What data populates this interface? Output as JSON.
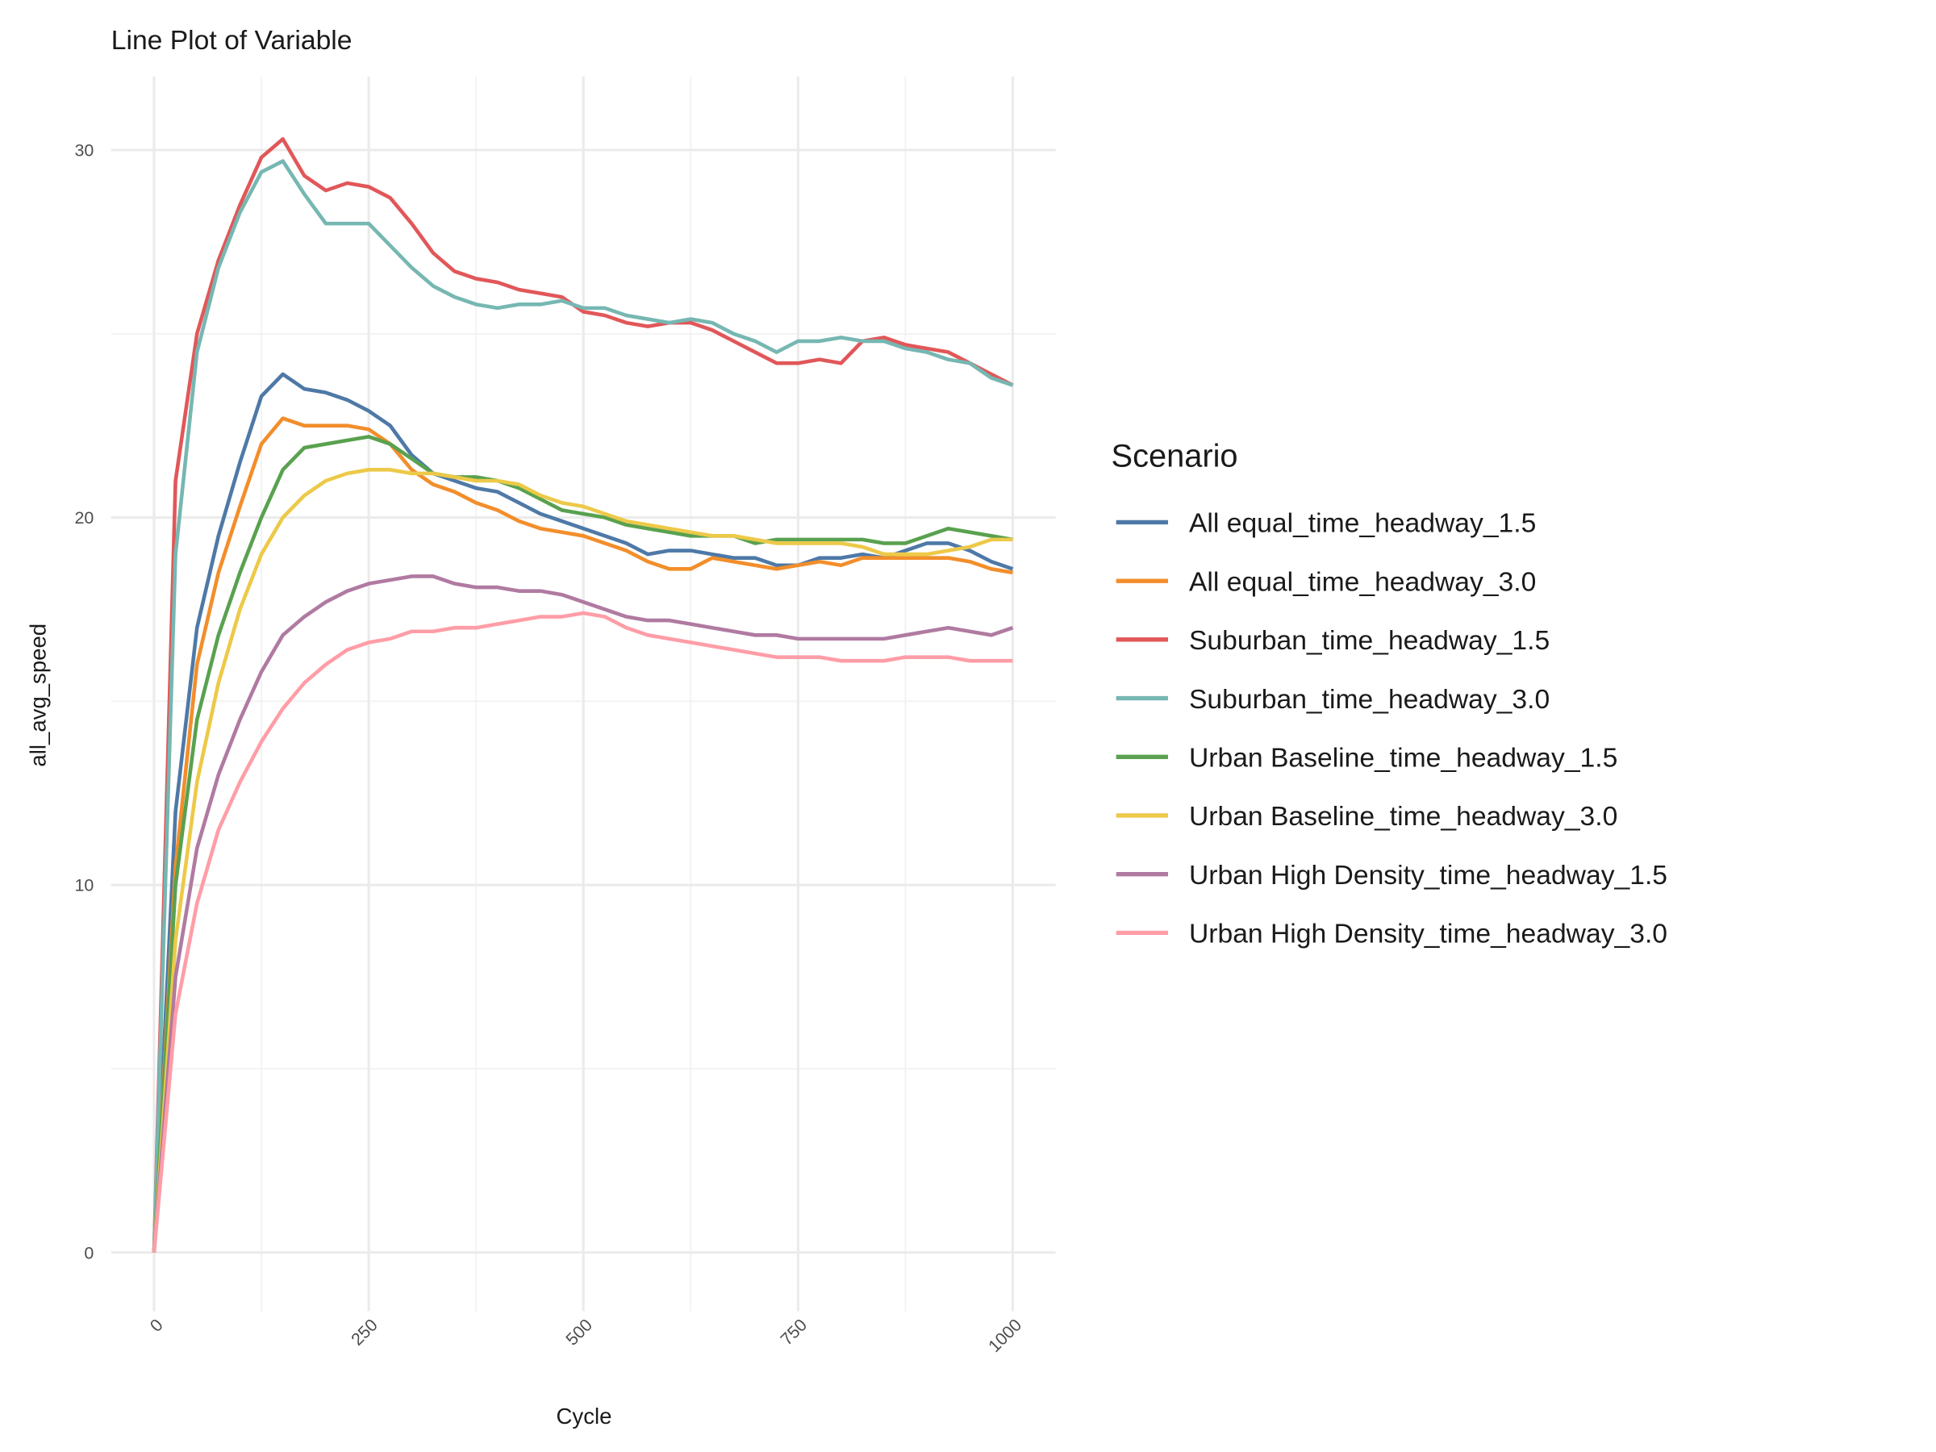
{
  "chart_data": {
    "type": "line",
    "title": "Line Plot of Variable",
    "x_label": "Cycle",
    "y_label": "all_avg_speed",
    "legend_title": "Scenario",
    "legend_position": "right",
    "grid": true,
    "xlim": [
      -50,
      1050
    ],
    "ylim": [
      -1.6,
      32
    ],
    "xticks": [
      0,
      250,
      500,
      750,
      1000
    ],
    "yticks": [
      0,
      10,
      20,
      30
    ],
    "minor_xticks": [
      125,
      375,
      625,
      875
    ],
    "minor_yticks": [
      5,
      15,
      25
    ],
    "x": [
      0,
      25,
      50,
      75,
      100,
      125,
      150,
      175,
      200,
      225,
      250,
      275,
      300,
      325,
      350,
      375,
      400,
      425,
      450,
      475,
      500,
      525,
      550,
      575,
      600,
      625,
      650,
      675,
      700,
      725,
      750,
      775,
      800,
      825,
      850,
      875,
      900,
      925,
      950,
      975,
      1000
    ],
    "series": [
      {
        "name": "All equal_time_headway_1.5",
        "color": "#4e79a7",
        "values": [
          0,
          12,
          17,
          19.5,
          21.5,
          23.3,
          23.9,
          23.5,
          23.4,
          23.2,
          22.9,
          22.5,
          21.7,
          21.2,
          21,
          20.8,
          20.7,
          20.4,
          20.1,
          19.9,
          19.7,
          19.5,
          19.3,
          19.0,
          19.1,
          19.1,
          19.0,
          18.9,
          18.9,
          18.7,
          18.7,
          18.9,
          18.9,
          19.0,
          18.9,
          19.1,
          19.3,
          19.3,
          19.1,
          18.8,
          18.6
        ]
      },
      {
        "name": "All equal_time_headway_3.0",
        "color": "#f28e2b",
        "values": [
          0,
          10.5,
          16,
          18.5,
          20.3,
          22,
          22.7,
          22.5,
          22.5,
          22.5,
          22.4,
          22,
          21.3,
          20.9,
          20.7,
          20.4,
          20.2,
          19.9,
          19.7,
          19.6,
          19.5,
          19.3,
          19.1,
          18.8,
          18.6,
          18.6,
          18.9,
          18.8,
          18.7,
          18.6,
          18.7,
          18.8,
          18.7,
          18.9,
          18.9,
          18.9,
          18.9,
          18.9,
          18.8,
          18.6,
          18.5
        ]
      },
      {
        "name": "Suburban_time_headway_1.5",
        "color": "#e15759",
        "values": [
          0,
          21,
          25,
          27,
          28.5,
          29.8,
          30.3,
          29.3,
          28.9,
          29.1,
          29.0,
          28.7,
          28.0,
          27.2,
          26.7,
          26.5,
          26.4,
          26.2,
          26.1,
          26.0,
          25.6,
          25.5,
          25.3,
          25.2,
          25.3,
          25.3,
          25.1,
          24.8,
          24.5,
          24.2,
          24.2,
          24.3,
          24.2,
          24.8,
          24.9,
          24.7,
          24.6,
          24.5,
          24.2,
          23.9,
          23.6
        ]
      },
      {
        "name": "Suburban_time_headway_3.0",
        "color": "#76b7b2",
        "values": [
          0,
          19,
          24.5,
          26.8,
          28.3,
          29.4,
          29.7,
          28.8,
          28.0,
          28.0,
          28.0,
          27.4,
          26.8,
          26.3,
          26.0,
          25.8,
          25.7,
          25.8,
          25.8,
          25.9,
          25.7,
          25.7,
          25.5,
          25.4,
          25.3,
          25.4,
          25.3,
          25.0,
          24.8,
          24.5,
          24.8,
          24.8,
          24.9,
          24.8,
          24.8,
          24.6,
          24.5,
          24.3,
          24.2,
          23.8,
          23.6
        ]
      },
      {
        "name": "Urban Baseline_time_headway_1.5",
        "color": "#59a14f",
        "values": [
          0,
          10,
          14.5,
          16.8,
          18.5,
          20,
          21.3,
          21.9,
          22.0,
          22.1,
          22.2,
          22.0,
          21.6,
          21.2,
          21.1,
          21.1,
          21.0,
          20.8,
          20.5,
          20.2,
          20.1,
          20.0,
          19.8,
          19.7,
          19.6,
          19.5,
          19.5,
          19.5,
          19.3,
          19.4,
          19.4,
          19.4,
          19.4,
          19.4,
          19.3,
          19.3,
          19.5,
          19.7,
          19.6,
          19.5,
          19.4
        ]
      },
      {
        "name": "Urban Baseline_time_headway_3.0",
        "color": "#edc948",
        "values": [
          0,
          8.5,
          12.8,
          15.5,
          17.5,
          19,
          20,
          20.6,
          21,
          21.2,
          21.3,
          21.3,
          21.2,
          21.2,
          21.1,
          21.0,
          21.0,
          20.9,
          20.6,
          20.4,
          20.3,
          20.1,
          19.9,
          19.8,
          19.7,
          19.6,
          19.5,
          19.5,
          19.4,
          19.3,
          19.3,
          19.3,
          19.3,
          19.2,
          19.0,
          19.0,
          19.0,
          19.1,
          19.2,
          19.4,
          19.4
        ]
      },
      {
        "name": "Urban High Density_time_headway_1.5",
        "color": "#b07aa1",
        "values": [
          0,
          7.5,
          11,
          13,
          14.5,
          15.8,
          16.8,
          17.3,
          17.7,
          18.0,
          18.2,
          18.3,
          18.4,
          18.4,
          18.2,
          18.1,
          18.1,
          18.0,
          18.0,
          17.9,
          17.7,
          17.5,
          17.3,
          17.2,
          17.2,
          17.1,
          17.0,
          16.9,
          16.8,
          16.8,
          16.7,
          16.7,
          16.7,
          16.7,
          16.7,
          16.8,
          16.9,
          17.0,
          16.9,
          16.8,
          17.0
        ]
      },
      {
        "name": "Urban High Density_time_headway_3.0",
        "color": "#ff9da7",
        "values": [
          0,
          6.5,
          9.5,
          11.5,
          12.8,
          13.9,
          14.8,
          15.5,
          16.0,
          16.4,
          16.6,
          16.7,
          16.9,
          16.9,
          17.0,
          17.0,
          17.1,
          17.2,
          17.3,
          17.3,
          17.4,
          17.3,
          17.0,
          16.8,
          16.7,
          16.6,
          16.5,
          16.4,
          16.3,
          16.2,
          16.2,
          16.2,
          16.1,
          16.1,
          16.1,
          16.2,
          16.2,
          16.2,
          16.1,
          16.1,
          16.1
        ]
      }
    ]
  }
}
